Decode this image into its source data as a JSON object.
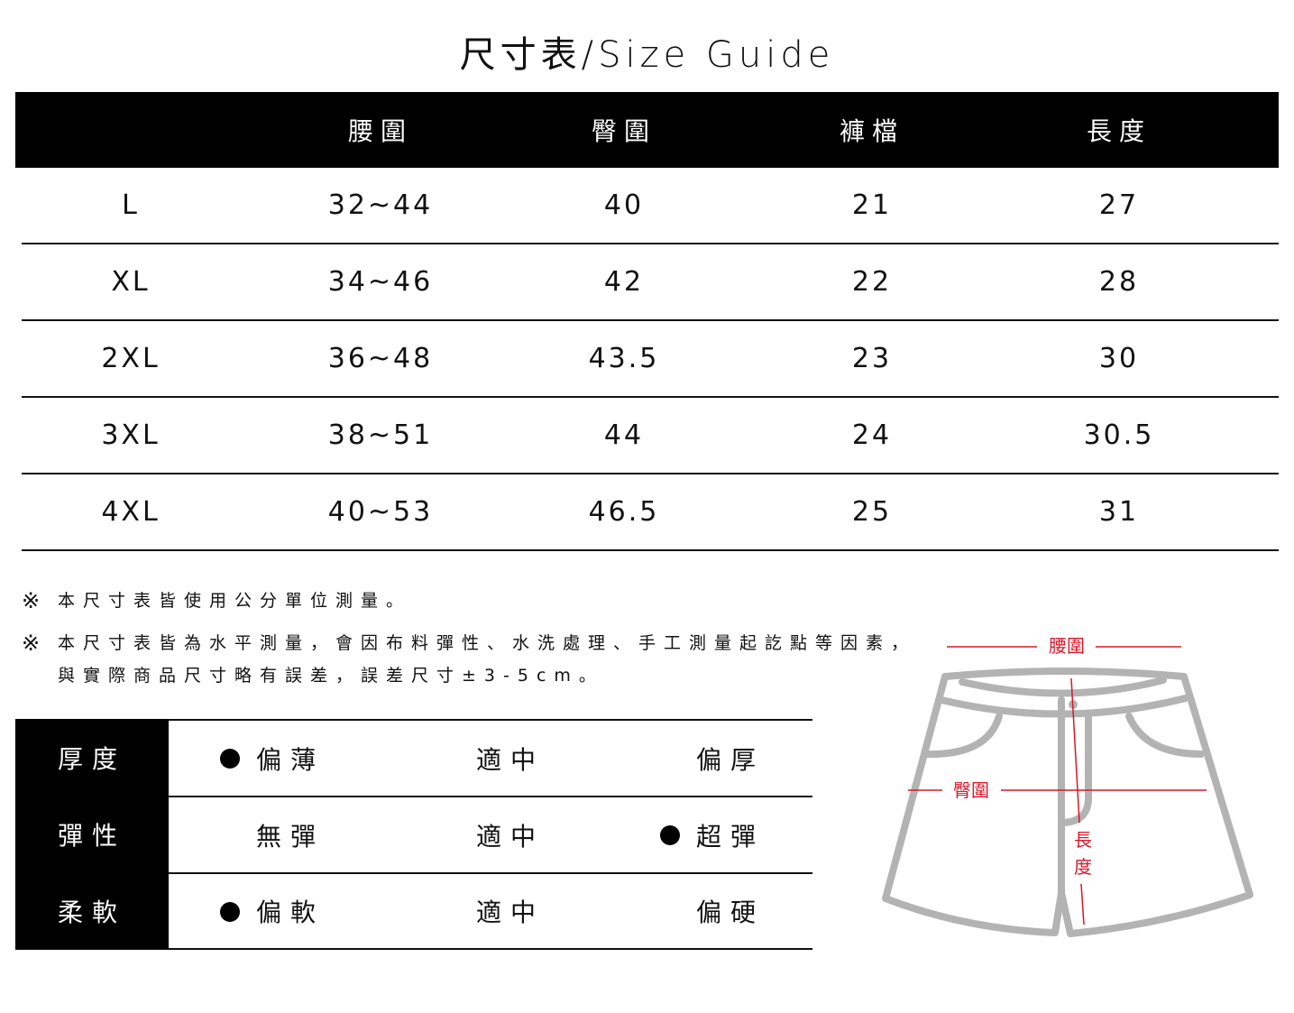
{
  "title": "尺寸表/Size Guide",
  "size_table": {
    "headers": [
      "",
      "腰圍",
      "臀圍",
      "褲檔",
      "長度"
    ],
    "rows": [
      [
        "L",
        "32~44",
        "40",
        "21",
        "27"
      ],
      [
        "XL",
        "34~46",
        "42",
        "22",
        "28"
      ],
      [
        "2XL",
        "36~48",
        "43.5",
        "23",
        "30"
      ],
      [
        "3XL",
        "38~51",
        "44",
        "24",
        "30.5"
      ],
      [
        "4XL",
        "40~53",
        "46.5",
        "25",
        "31"
      ]
    ]
  },
  "notes": [
    {
      "mark": "※",
      "lines": [
        "本尺寸表皆使用公分單位測量。"
      ]
    },
    {
      "mark": "※",
      "lines": [
        "本尺寸表皆為水平測量，會因布料彈性、水洗處理、手工測量起訖點等因素，",
        "與實際商品尺寸略有誤差，誤差尺寸±3-5cm。"
      ]
    }
  ],
  "attributes": [
    {
      "label": "厚度",
      "options": [
        "偏薄",
        "適中",
        "偏厚"
      ],
      "selected": 0
    },
    {
      "label": "彈性",
      "options": [
        "無彈",
        "適中",
        "超彈"
      ],
      "selected": 2
    },
    {
      "label": "柔軟",
      "options": [
        "偏軟",
        "適中",
        "偏硬"
      ],
      "selected": 0
    }
  ],
  "diagram": {
    "waist_label": "腰圍",
    "hip_label": "臀圍",
    "length_label": [
      "長",
      "度"
    ],
    "outline_color": "#b3b3b3",
    "measure_color": "#d7182a"
  }
}
